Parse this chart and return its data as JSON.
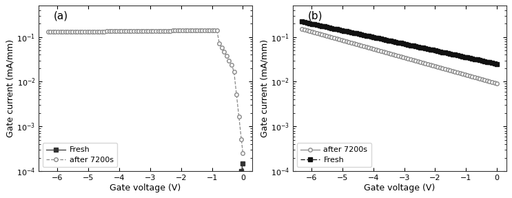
{
  "panel_a": {
    "label_pos": "(a)",
    "legend_fresh": "Fresh",
    "legend_after": "after 7200s",
    "xlabel": "Gate voltage (V)",
    "ylabel": "Gate current (mA/mm)",
    "xlim": [
      -6.6,
      0.3
    ],
    "ylim": [
      0.0001,
      0.5
    ]
  },
  "panel_b": {
    "label_pos": "(b)",
    "legend_after": "after 7200s",
    "legend_fresh": "Fresh",
    "xlabel": "Gate voltage (V)",
    "ylabel": "Gate current (mA/mm)",
    "xlim": [
      -6.6,
      0.3
    ],
    "ylim": [
      0.0001,
      0.5
    ]
  },
  "background": "#ffffff"
}
